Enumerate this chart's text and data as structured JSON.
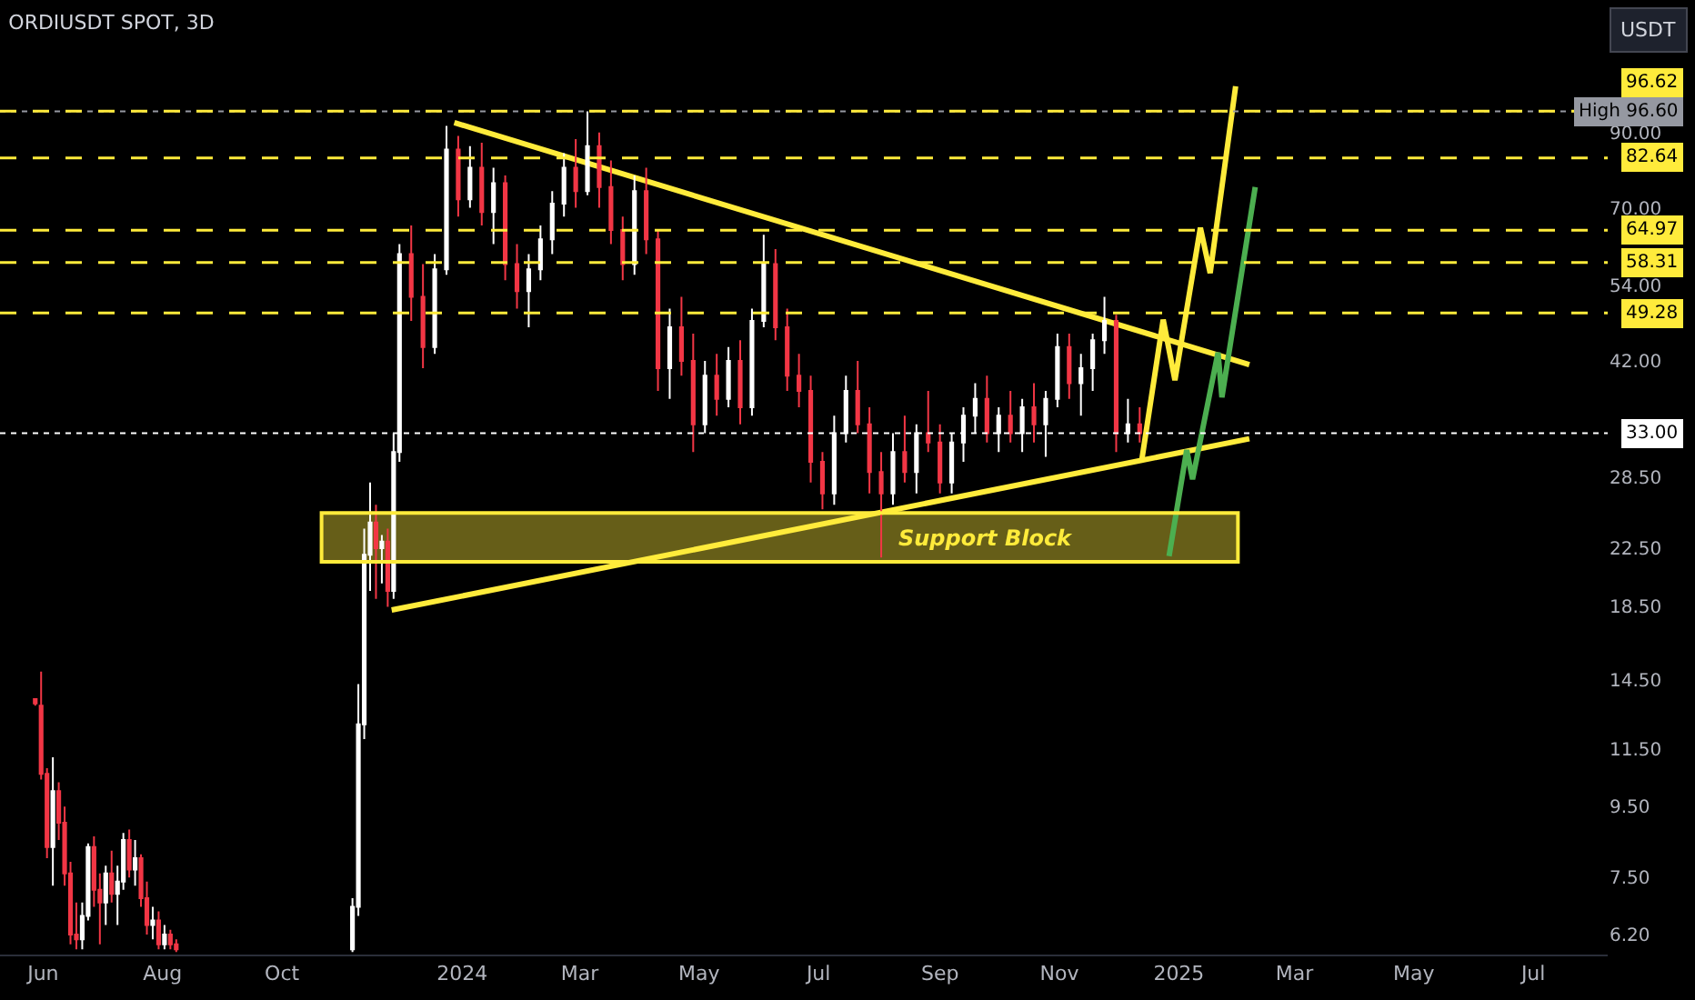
{
  "chart_data": {
    "type": "candlestick",
    "title": "ORDIUSDT SPOT, 3D",
    "ylabel": "USDT",
    "log": true,
    "ylim": [
      5.8,
      140
    ],
    "yticks": [
      {
        "value": 90,
        "label": "90.00"
      },
      {
        "value": 70,
        "label": "70.00"
      },
      {
        "value": 54,
        "label": "54.00"
      },
      {
        "value": 42,
        "label": "42.00"
      },
      {
        "value": 28.5,
        "label": "28.50"
      },
      {
        "value": 22.5,
        "label": "22.50"
      },
      {
        "value": 18.5,
        "label": "18.50"
      },
      {
        "value": 14.5,
        "label": "14.50"
      },
      {
        "value": 11.5,
        "label": "11.50"
      },
      {
        "value": 9.5,
        "label": "9.50"
      },
      {
        "value": 7.5,
        "label": "7.50"
      },
      {
        "value": 6.2,
        "label": "6.20"
      }
    ],
    "xlim": [
      "2023-05-10",
      "2025-08-08"
    ],
    "xticks": [
      {
        "value": "2023-06-01",
        "label": "Jun"
      },
      {
        "value": "2023-08-01",
        "label": "Aug"
      },
      {
        "value": "2023-10-01",
        "label": "Oct"
      },
      {
        "value": "2024-01-01",
        "label": "2024"
      },
      {
        "value": "2024-03-01",
        "label": "Mar"
      },
      {
        "value": "2024-05-01",
        "label": "May"
      },
      {
        "value": "2024-07-01",
        "label": "Jul"
      },
      {
        "value": "2024-09-01",
        "label": "Sep"
      },
      {
        "value": "2024-11-01",
        "label": "Nov"
      },
      {
        "value": "2025-01-01",
        "label": "2025"
      },
      {
        "value": "2025-03-01",
        "label": "Mar"
      },
      {
        "value": "2025-05-01",
        "label": "May"
      },
      {
        "value": "2025-07-01",
        "label": "Jul"
      }
    ],
    "series": [
      {
        "colors": [
          "#f23645",
          "#f23645",
          "#f23645",
          "#ffffff",
          "#f23645",
          "#f23645",
          "#f23645",
          "#f23645",
          "#ffffff",
          "#ffffff",
          "#f23645",
          "#f23645",
          "#ffffff",
          "#f23645",
          "#ffffff",
          "#ffffff",
          "#f23645",
          "#ffffff",
          "#f23645",
          "#f23645",
          "#ffffff",
          "#f23645",
          "#ffffff",
          "#f23645",
          "#f23645",
          "#ffffff",
          "#ffffff",
          "#ffffff",
          "#ffffff",
          "#f23645",
          "#ffffff",
          "#f23645",
          "#ffffff",
          "#ffffff",
          "#f23645",
          "#f23645",
          "#ffffff",
          "#ffffff",
          "#f23645",
          "#ffffff",
          "#f23645",
          "#ffffff",
          "#f23645",
          "#f23645",
          "#ffffff",
          "#ffffff",
          "#ffffff",
          "#ffffff",
          "#f23645",
          "#ffffff",
          "#f23645",
          "#f23645",
          "#f23645",
          "#ffffff",
          "#f23645",
          "#f23645",
          "#ffffff",
          "#f23645",
          "#f23645",
          "#ffffff",
          "#f23645",
          "#ffffff",
          "#f23645",
          "#ffffff",
          "#ffffff",
          "#f23645",
          "#f23645",
          "#f23645",
          "#f23645",
          "#f23645",
          "#ffffff",
          "#ffffff",
          "#f23645",
          "#f23645",
          "#f23645",
          "#ffffff",
          "#f23645",
          "#ffffff",
          "#f23645",
          "#f23645",
          "#ffffff",
          "#ffffff",
          "#ffffff",
          "#f23645",
          "#ffffff",
          "#f23645",
          "#ffffff",
          "#f23645",
          "#ffffff",
          "#ffffff",
          "#f23645",
          "#ffffff",
          "#ffffff",
          "#ffffff",
          "#f23645",
          "#ffffff",
          "#f23645"
        ],
        "x": [
          "2023-05-28",
          "2023-05-31",
          "2023-06-03",
          "2023-06-06",
          "2023-06-09",
          "2023-06-12",
          "2023-06-15",
          "2023-06-18",
          "2023-06-21",
          "2023-06-24",
          "2023-06-27",
          "2023-06-30",
          "2023-07-03",
          "2023-07-06",
          "2023-07-09",
          "2023-07-12",
          "2023-07-15",
          "2023-07-18",
          "2023-07-21",
          "2023-07-24",
          "2023-07-27",
          "2023-07-30",
          "2023-08-02",
          "2023-08-05",
          "2023-08-08",
          "2023-11-06",
          "2023-11-09",
          "2023-11-12",
          "2023-11-15",
          "2023-11-18",
          "2023-11-21",
          "2023-11-24",
          "2023-11-27",
          "2023-11-30",
          "2023-12-06",
          "2023-12-12",
          "2023-12-18",
          "2023-12-24",
          "2023-12-30",
          "2024-01-05",
          "2024-01-11",
          "2024-01-17",
          "2024-01-23",
          "2024-01-29",
          "2024-02-04",
          "2024-02-10",
          "2024-02-16",
          "2024-02-22",
          "2024-02-28",
          "2024-03-05",
          "2024-03-11",
          "2024-03-17",
          "2024-03-23",
          "2024-03-29",
          "2024-04-04",
          "2024-04-10",
          "2024-04-16",
          "2024-04-22",
          "2024-04-28",
          "2024-05-04",
          "2024-05-10",
          "2024-05-16",
          "2024-05-22",
          "2024-05-28",
          "2024-06-03",
          "2024-06-09",
          "2024-06-15",
          "2024-06-21",
          "2024-06-27",
          "2024-07-03",
          "2024-07-09",
          "2024-07-15",
          "2024-07-21",
          "2024-07-27",
          "2024-08-02",
          "2024-08-08",
          "2024-08-14",
          "2024-08-20",
          "2024-08-26",
          "2024-09-01",
          "2024-09-07",
          "2024-09-13",
          "2024-09-19",
          "2024-09-25",
          "2024-10-01",
          "2024-10-07",
          "2024-10-13",
          "2024-10-19",
          "2024-10-25",
          "2024-10-31",
          "2024-11-06",
          "2024-11-12",
          "2024-11-18",
          "2024-11-24",
          "2024-11-30",
          "2024-12-06",
          "2024-12-12"
        ],
        "ohlc": [
          [
            13.6,
            13.6,
            13.3,
            13.4
          ],
          [
            13.3,
            14.9,
            10.4,
            10.6
          ],
          [
            10.6,
            10.8,
            8.0,
            8.3
          ],
          [
            8.3,
            11.2,
            7.3,
            10.0
          ],
          [
            10.0,
            10.3,
            8.5,
            9.0
          ],
          [
            9.0,
            9.5,
            7.3,
            7.6
          ],
          [
            7.6,
            7.9,
            6.0,
            6.2
          ],
          [
            6.2,
            6.9,
            5.9,
            6.1
          ],
          [
            6.1,
            6.9,
            5.9,
            6.6
          ],
          [
            6.6,
            8.4,
            6.5,
            8.3
          ],
          [
            8.3,
            8.6,
            6.8,
            7.2
          ],
          [
            7.2,
            7.6,
            6.0,
            6.9
          ],
          [
            6.9,
            7.8,
            6.4,
            7.6
          ],
          [
            7.6,
            8.2,
            6.9,
            7.1
          ],
          [
            7.1,
            7.8,
            6.4,
            7.4
          ],
          [
            7.4,
            8.7,
            7.2,
            8.5
          ],
          [
            8.5,
            8.8,
            7.5,
            7.7
          ],
          [
            7.7,
            8.5,
            7.3,
            8.0
          ],
          [
            8.0,
            8.1,
            6.8,
            7.0
          ],
          [
            7.0,
            7.4,
            6.2,
            6.4
          ],
          [
            6.4,
            6.8,
            6.1,
            6.5
          ],
          [
            6.5,
            6.7,
            5.9,
            6.0
          ],
          [
            6.0,
            6.4,
            5.9,
            6.2
          ],
          [
            6.2,
            6.3,
            5.9,
            6.0
          ],
          [
            6.0,
            6.1,
            5.85,
            5.9
          ],
          [
            5.9,
            7.0,
            5.85,
            6.8
          ],
          [
            6.8,
            14.3,
            6.6,
            12.5
          ],
          [
            12.5,
            24,
            11.9,
            22
          ],
          [
            22,
            28,
            19.5,
            24.5
          ],
          [
            24.5,
            26,
            19,
            22.5
          ],
          [
            22.5,
            23.5,
            20,
            23
          ],
          [
            23,
            24,
            18.5,
            19.5
          ],
          [
            19.5,
            33,
            19,
            31
          ],
          [
            31,
            62,
            30,
            60
          ],
          [
            60,
            66,
            48,
            52
          ],
          [
            52,
            58,
            41,
            44
          ],
          [
            44,
            60,
            43,
            57
          ],
          [
            57,
            92,
            56,
            85
          ],
          [
            85,
            89,
            68,
            72
          ],
          [
            72,
            86,
            70,
            80
          ],
          [
            80,
            87,
            66,
            69
          ],
          [
            69,
            80,
            62,
            76
          ],
          [
            76,
            78,
            55,
            58
          ],
          [
            58,
            62,
            50,
            53
          ],
          [
            53,
            60,
            47,
            57
          ],
          [
            57,
            66,
            55,
            63
          ],
          [
            63,
            74,
            60,
            71
          ],
          [
            71,
            84,
            68,
            80
          ],
          [
            80,
            88,
            70,
            74
          ],
          [
            74,
            96.6,
            73,
            86
          ],
          [
            86,
            90,
            70,
            75
          ],
          [
            75,
            82,
            62,
            65
          ],
          [
            65,
            68,
            55,
            58
          ],
          [
            58,
            78,
            56,
            74
          ],
          [
            74,
            80,
            60,
            63
          ],
          [
            63,
            65,
            38,
            41
          ],
          [
            41,
            50,
            37,
            47
          ],
          [
            47,
            52,
            40,
            42
          ],
          [
            42,
            46,
            31,
            34
          ],
          [
            34,
            42,
            33,
            40
          ],
          [
            40,
            43,
            35,
            37
          ],
          [
            37,
            44,
            36,
            42
          ],
          [
            42,
            45,
            34,
            36
          ],
          [
            36,
            50,
            35,
            48
          ],
          [
            48,
            64,
            47,
            58
          ],
          [
            58,
            61,
            45,
            47
          ],
          [
            47,
            50,
            38,
            40
          ],
          [
            40,
            43,
            36,
            38
          ],
          [
            38,
            40,
            28,
            30
          ],
          [
            30,
            31,
            25.6,
            27
          ],
          [
            27,
            35,
            26,
            33
          ],
          [
            33,
            40,
            32,
            38
          ],
          [
            38,
            42,
            33,
            34
          ],
          [
            34,
            36,
            27,
            29
          ],
          [
            29,
            31,
            21.8,
            27
          ],
          [
            27,
            33,
            26,
            31
          ],
          [
            31,
            35,
            28,
            29
          ],
          [
            29,
            34,
            27,
            33
          ],
          [
            33,
            38,
            31,
            32
          ],
          [
            32,
            34,
            27,
            28
          ],
          [
            28,
            33,
            27,
            32
          ],
          [
            32,
            36,
            30,
            35
          ],
          [
            35,
            39,
            33,
            37
          ],
          [
            37,
            40,
            32,
            33
          ],
          [
            33,
            36,
            31,
            35
          ],
          [
            35,
            38,
            32,
            33
          ],
          [
            33,
            37,
            31,
            36
          ],
          [
            36,
            39,
            32,
            34
          ],
          [
            34,
            38,
            30.5,
            37
          ],
          [
            37,
            46,
            36,
            44
          ],
          [
            44,
            46,
            37,
            39
          ],
          [
            39,
            43,
            35,
            41
          ],
          [
            41,
            46,
            38,
            45
          ],
          [
            45,
            52,
            43,
            48
          ],
          [
            48,
            49,
            31,
            33
          ],
          [
            33,
            37,
            32,
            34
          ],
          [
            34,
            36,
            32,
            33
          ]
        ]
      },
      {
        "type": "line",
        "color": "#ffeb3b",
        "x": [
          "2023-12-28",
          "2025-02-06"
        ],
        "values": [
          93,
          41.5
        ]
      },
      {
        "type": "line",
        "color": "#ffeb3b",
        "x": [
          "2023-11-26",
          "2025-02-06"
        ],
        "values": [
          18.3,
          32.4
        ]
      },
      {
        "type": "line",
        "color": "#ffeb3b",
        "x": [
          "2024-12-13",
          "2024-12-24",
          "2024-12-30",
          "2025-01-12",
          "2025-01-17",
          "2025-01-30"
        ],
        "values": [
          30.1,
          48.2,
          39.4,
          65.5,
          56.3,
          105
        ]
      },
      {
        "type": "line",
        "color": "#4caf50",
        "x": [
          "2024-12-27",
          "2025-01-05",
          "2025-01-08",
          "2025-01-21",
          "2025-01-23",
          "2025-02-09"
        ],
        "values": [
          21.9,
          31.2,
          28.3,
          43.2,
          37.2,
          75
        ]
      }
    ],
    "ref_lines": [
      {
        "axis": "y",
        "value": 96.62,
        "label": "96.62",
        "color": "#ffeb3b",
        "line_style": "dashed"
      },
      {
        "axis": "y",
        "value": 96.6,
        "label": "High 96.60",
        "color": "#9598a1",
        "line_style": "dotted"
      },
      {
        "axis": "y",
        "value": 82.64,
        "label": "82.64",
        "color": "#ffeb3b",
        "line_style": "dashed"
      },
      {
        "axis": "y",
        "value": 64.97,
        "label": "64.97",
        "color": "#ffeb3b",
        "line_style": "dashed"
      },
      {
        "axis": "y",
        "value": 58.31,
        "label": "58.31",
        "color": "#ffeb3b",
        "line_style": "dashed"
      },
      {
        "axis": "y",
        "value": 49.28,
        "label": "49.28",
        "color": "#ffeb3b",
        "line_style": "dashed"
      },
      {
        "axis": "y",
        "value": 33,
        "label": "33.00",
        "color": "#ffffff",
        "line_style": "dotted"
      }
    ],
    "bands": [
      {
        "axis": "y",
        "from": 21.5,
        "to": 25.3,
        "label": "Support Block",
        "color": "#ffeb3b"
      }
    ]
  }
}
